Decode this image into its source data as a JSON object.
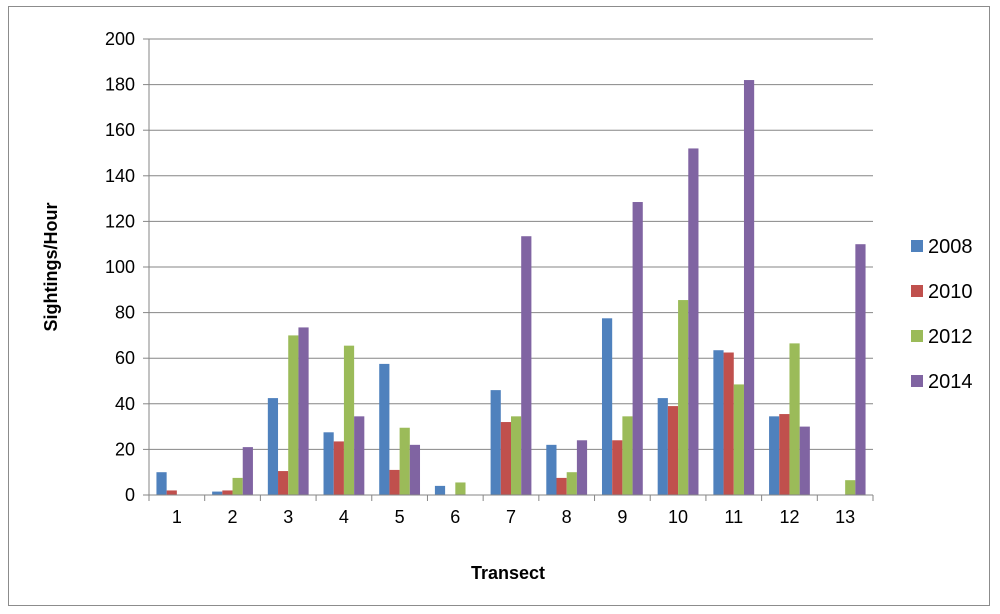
{
  "chart_data": {
    "type": "bar",
    "title": "",
    "xlabel": "Transect",
    "ylabel": "Sightings/Hour",
    "ylim": [
      0,
      200
    ],
    "yticks": [
      0,
      20,
      40,
      60,
      80,
      100,
      120,
      140,
      160,
      180,
      200
    ],
    "grid": "horizontal",
    "legend_position": "right",
    "categories": [
      "1",
      "2",
      "3",
      "4",
      "5",
      "6",
      "7",
      "8",
      "9",
      "10",
      "11",
      "12",
      "13"
    ],
    "series": [
      {
        "name": "2008",
        "color": "#4f81bd",
        "values": [
          10,
          1.5,
          42.5,
          27.5,
          57.5,
          4,
          46,
          22,
          77.5,
          42.5,
          63.5,
          34.5,
          0
        ]
      },
      {
        "name": "2010",
        "color": "#c0504d",
        "values": [
          2,
          2,
          10.5,
          23.5,
          11,
          0,
          32,
          7.5,
          24,
          39,
          62.5,
          35.5,
          0
        ]
      },
      {
        "name": "2012",
        "color": "#9bbb59",
        "values": [
          0,
          7.5,
          70,
          65.5,
          29.5,
          5.5,
          34.5,
          10,
          34.5,
          85.5,
          48.5,
          66.5,
          6.5
        ]
      },
      {
        "name": "2014",
        "color": "#8064a2",
        "values": [
          0,
          21,
          73.5,
          34.5,
          22,
          0,
          113.5,
          24,
          128.5,
          152,
          182,
          30,
          110
        ]
      }
    ]
  }
}
